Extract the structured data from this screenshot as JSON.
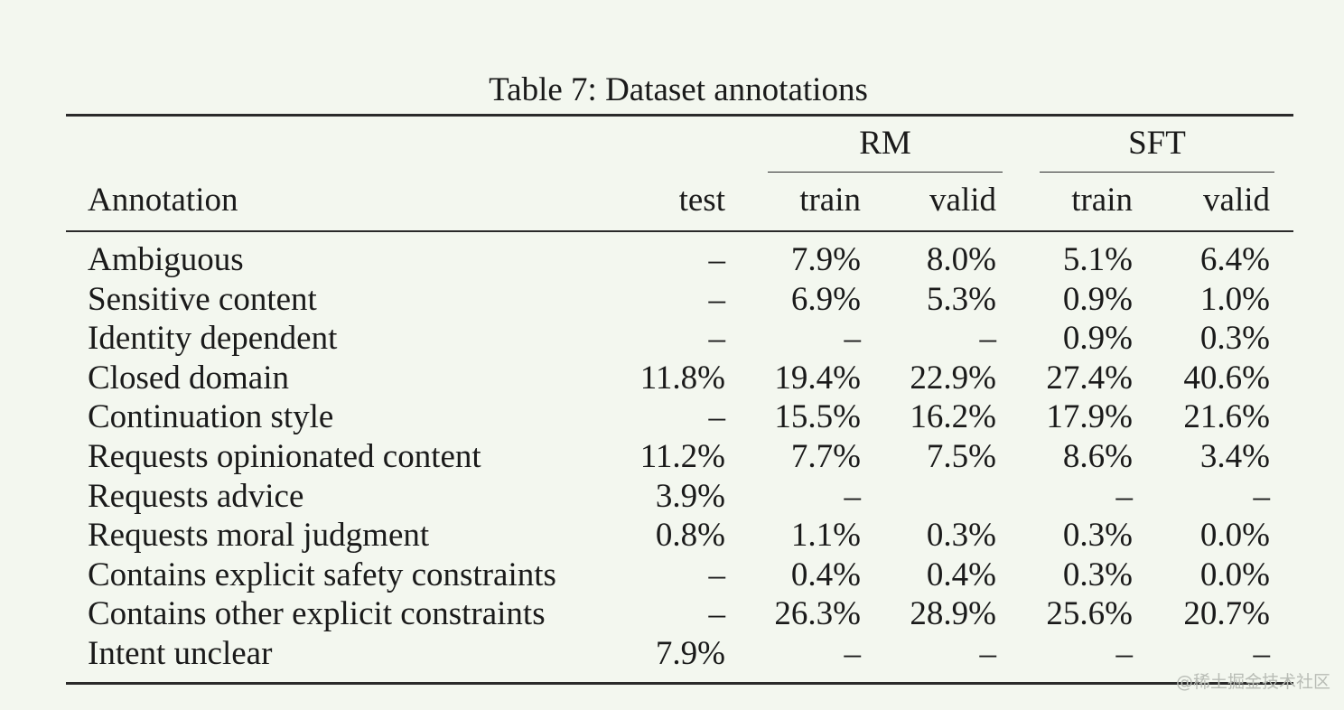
{
  "caption": "Table 7: Dataset annotations",
  "table": {
    "group_headers": {
      "rm": "RM",
      "sft": "SFT"
    },
    "column_headers": {
      "annotation": "Annotation",
      "test": "test",
      "rm_train": "train",
      "rm_valid": "valid",
      "sft_train": "train",
      "sft_valid": "valid"
    },
    "rows": [
      {
        "label": "Ambiguous",
        "test": "–",
        "rm_train": "7.9%",
        "rm_valid": "8.0%",
        "sft_train": "5.1%",
        "sft_valid": "6.4%"
      },
      {
        "label": "Sensitive content",
        "test": "–",
        "rm_train": "6.9%",
        "rm_valid": "5.3%",
        "sft_train": "0.9%",
        "sft_valid": "1.0%"
      },
      {
        "label": "Identity dependent",
        "test": "–",
        "rm_train": "–",
        "rm_valid": "–",
        "sft_train": "0.9%",
        "sft_valid": "0.3%"
      },
      {
        "label": "Closed domain",
        "test": "11.8%",
        "rm_train": "19.4%",
        "rm_valid": "22.9%",
        "sft_train": "27.4%",
        "sft_valid": "40.6%"
      },
      {
        "label": "Continuation style",
        "test": "–",
        "rm_train": "15.5%",
        "rm_valid": "16.2%",
        "sft_train": "17.9%",
        "sft_valid": "21.6%"
      },
      {
        "label": "Requests opinionated content",
        "test": "11.2%",
        "rm_train": "7.7%",
        "rm_valid": "7.5%",
        "sft_train": "8.6%",
        "sft_valid": "3.4%"
      },
      {
        "label": "Requests advice",
        "test": "3.9%",
        "rm_train": "–",
        "rm_valid": "",
        "sft_train": "–",
        "sft_valid": "–"
      },
      {
        "label": "Requests moral judgment",
        "test": "0.8%",
        "rm_train": "1.1%",
        "rm_valid": "0.3%",
        "sft_train": "0.3%",
        "sft_valid": "0.0%"
      },
      {
        "label": "Contains explicit safety constraints",
        "test": "–",
        "rm_train": "0.4%",
        "rm_valid": "0.4%",
        "sft_train": "0.3%",
        "sft_valid": "0.0%"
      },
      {
        "label": "Contains other explicit constraints",
        "test": "–",
        "rm_train": "26.3%",
        "rm_valid": "28.9%",
        "sft_train": "25.6%",
        "sft_valid": "20.7%"
      },
      {
        "label": "Intent unclear",
        "test": "7.9%",
        "rm_train": "–",
        "rm_valid": "–",
        "sft_train": "–",
        "sft_valid": "–"
      }
    ]
  },
  "watermark": "@稀土掘金技术社区"
}
